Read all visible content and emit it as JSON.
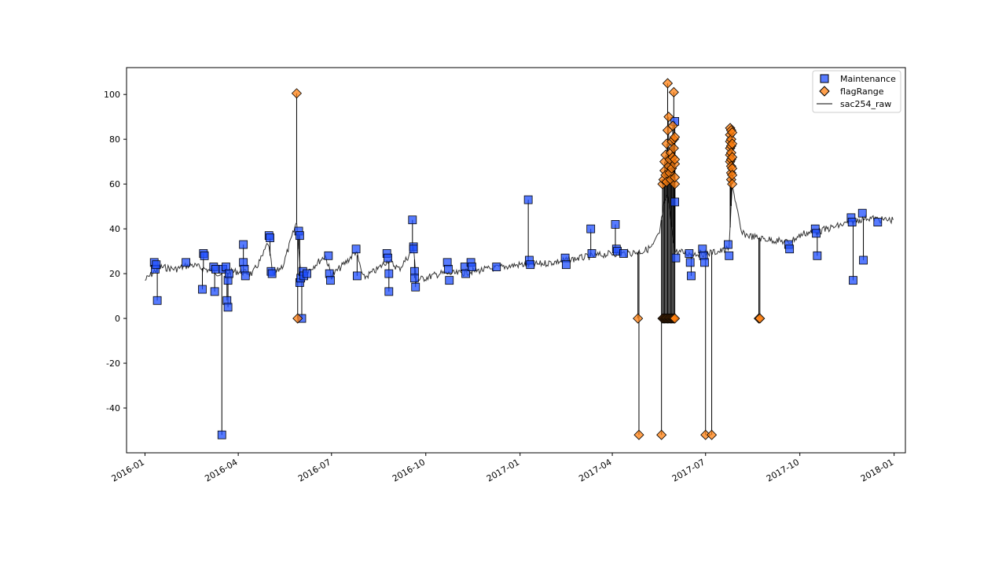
{
  "chart_data": {
    "type": "scatter",
    "title": "",
    "xlabel": "",
    "ylabel": "",
    "xlim": [
      "2015-12-14",
      "2018-01-12"
    ],
    "ylim": [
      -60,
      112
    ],
    "grid": false,
    "legend_position": "upper right",
    "x_tick_labels": [
      "2016-01",
      "2016-04",
      "2016-07",
      "2016-10",
      "2017-01",
      "2017-04",
      "2017-07",
      "2017-10",
      "2018-01"
    ],
    "y_tick_labels": [
      "-40",
      "-20",
      "0",
      "20",
      "40",
      "60",
      "80",
      "100"
    ],
    "y_ticks": [
      -40,
      -20,
      0,
      20,
      40,
      60,
      80,
      100
    ],
    "series": [
      {
        "name": "Maintenance",
        "marker": "square",
        "color": "#1f4fff",
        "points": [
          [
            "2016-01-10",
            25
          ],
          [
            "2016-01-11",
            22
          ],
          [
            "2016-01-12",
            24
          ],
          [
            "2016-01-13",
            8
          ],
          [
            "2016-02-10",
            25
          ],
          [
            "2016-02-26",
            13
          ],
          [
            "2016-02-27",
            29
          ],
          [
            "2016-02-28",
            28
          ],
          [
            "2016-03-08",
            23
          ],
          [
            "2016-03-09",
            12
          ],
          [
            "2016-03-10",
            22
          ],
          [
            "2016-03-16",
            -52
          ],
          [
            "2016-03-17",
            22
          ],
          [
            "2016-03-20",
            23
          ],
          [
            "2016-03-21",
            8
          ],
          [
            "2016-03-22",
            5
          ],
          [
            "2016-03-22",
            17
          ],
          [
            "2016-03-23",
            20
          ],
          [
            "2016-04-06",
            33
          ],
          [
            "2016-04-06",
            25
          ],
          [
            "2016-04-07",
            22
          ],
          [
            "2016-04-08",
            19
          ],
          [
            "2016-05-01",
            37
          ],
          [
            "2016-05-02",
            36
          ],
          [
            "2016-05-03",
            21
          ],
          [
            "2016-05-04",
            20
          ],
          [
            "2016-05-30",
            39
          ],
          [
            "2016-05-31",
            37
          ],
          [
            "2016-05-31",
            16
          ],
          [
            "2016-06-01",
            18
          ],
          [
            "2016-06-02",
            0
          ],
          [
            "2016-06-03",
            21
          ],
          [
            "2016-06-04",
            19
          ],
          [
            "2016-06-07",
            20
          ],
          [
            "2016-06-28",
            28
          ],
          [
            "2016-06-29",
            20
          ],
          [
            "2016-06-30",
            17
          ],
          [
            "2016-07-25",
            31
          ],
          [
            "2016-07-26",
            19
          ],
          [
            "2016-08-24",
            29
          ],
          [
            "2016-08-25",
            27
          ],
          [
            "2016-08-26",
            12
          ],
          [
            "2016-08-26",
            20
          ],
          [
            "2016-09-18",
            44
          ],
          [
            "2016-09-19",
            32
          ],
          [
            "2016-09-19",
            31
          ],
          [
            "2016-09-20",
            21
          ],
          [
            "2016-09-20",
            18
          ],
          [
            "2016-09-21",
            14
          ],
          [
            "2016-10-22",
            25
          ],
          [
            "2016-10-23",
            22
          ],
          [
            "2016-10-24",
            17
          ],
          [
            "2016-11-08",
            23
          ],
          [
            "2016-11-09",
            20
          ],
          [
            "2016-11-14",
            25
          ],
          [
            "2016-11-15",
            23
          ],
          [
            "2016-12-09",
            23
          ],
          [
            "2017-01-09",
            53
          ],
          [
            "2017-01-10",
            26
          ],
          [
            "2017-01-11",
            24
          ],
          [
            "2017-02-14",
            27
          ],
          [
            "2017-02-15",
            24
          ],
          [
            "2017-03-11",
            40
          ],
          [
            "2017-03-12",
            29
          ],
          [
            "2017-04-04",
            42
          ],
          [
            "2017-04-05",
            31
          ],
          [
            "2017-04-06",
            30
          ],
          [
            "2017-04-12",
            29
          ],
          [
            "2017-06-01",
            88
          ],
          [
            "2017-06-01",
            52
          ],
          [
            "2017-06-02",
            27
          ],
          [
            "2017-06-15",
            29
          ],
          [
            "2017-06-16",
            25
          ],
          [
            "2017-06-17",
            19
          ],
          [
            "2017-06-28",
            31
          ],
          [
            "2017-06-29",
            28
          ],
          [
            "2017-06-30",
            25
          ],
          [
            "2017-07-23",
            33
          ],
          [
            "2017-07-24",
            28
          ],
          [
            "2017-09-20",
            33
          ],
          [
            "2017-09-21",
            31
          ],
          [
            "2017-10-16",
            40
          ],
          [
            "2017-10-17",
            38
          ],
          [
            "2017-10-18",
            28
          ],
          [
            "2017-11-20",
            45
          ],
          [
            "2017-11-21",
            43
          ],
          [
            "2017-11-22",
            17
          ],
          [
            "2017-12-01",
            47
          ],
          [
            "2017-12-02",
            26
          ],
          [
            "2017-12-16",
            43
          ]
        ]
      },
      {
        "name": "flagRange",
        "marker": "diamond",
        "color": "#ff8010",
        "points": [
          [
            "2016-05-28",
            100.5
          ],
          [
            "2016-05-29",
            0
          ],
          [
            "2017-04-26",
            0
          ],
          [
            "2017-04-27",
            -52
          ],
          [
            "2017-05-19",
            -52
          ],
          [
            "2017-05-20",
            0
          ],
          [
            "2017-05-21",
            0
          ],
          [
            "2017-05-22",
            0
          ],
          [
            "2017-05-23",
            0
          ],
          [
            "2017-05-24",
            0
          ],
          [
            "2017-05-25",
            0
          ],
          [
            "2017-05-26",
            0
          ],
          [
            "2017-05-27",
            0
          ],
          [
            "2017-05-28",
            0
          ],
          [
            "2017-05-29",
            0
          ],
          [
            "2017-05-30",
            0
          ],
          [
            "2017-05-31",
            0
          ],
          [
            "2017-06-01",
            0
          ],
          [
            "2017-05-20",
            60
          ],
          [
            "2017-05-21",
            62
          ],
          [
            "2017-05-22",
            66
          ],
          [
            "2017-05-22",
            70
          ],
          [
            "2017-05-23",
            64
          ],
          [
            "2017-05-23",
            73
          ],
          [
            "2017-05-24",
            61
          ],
          [
            "2017-05-24",
            78
          ],
          [
            "2017-05-25",
            84
          ],
          [
            "2017-05-25",
            105
          ],
          [
            "2017-05-26",
            68
          ],
          [
            "2017-05-26",
            90
          ],
          [
            "2017-05-27",
            71
          ],
          [
            "2017-05-27",
            65
          ],
          [
            "2017-05-28",
            74
          ],
          [
            "2017-05-28",
            62
          ],
          [
            "2017-05-29",
            79
          ],
          [
            "2017-05-29",
            67
          ],
          [
            "2017-05-30",
            86
          ],
          [
            "2017-05-30",
            72
          ],
          [
            "2017-05-31",
            101
          ],
          [
            "2017-05-31",
            80
          ],
          [
            "2017-05-31",
            76
          ],
          [
            "2017-06-01",
            60
          ],
          [
            "2017-06-01",
            63
          ],
          [
            "2017-06-01",
            69
          ],
          [
            "2017-06-01",
            71
          ],
          [
            "2017-06-01",
            81
          ],
          [
            "2017-07-01",
            -52
          ],
          [
            "2017-07-07",
            -52
          ],
          [
            "2017-07-25",
            85
          ],
          [
            "2017-07-25",
            82
          ],
          [
            "2017-07-25",
            79
          ],
          [
            "2017-07-25",
            76
          ],
          [
            "2017-07-25",
            73
          ],
          [
            "2017-07-25",
            70
          ],
          [
            "2017-07-26",
            84
          ],
          [
            "2017-07-26",
            80
          ],
          [
            "2017-07-26",
            77
          ],
          [
            "2017-07-26",
            74
          ],
          [
            "2017-07-26",
            71
          ],
          [
            "2017-07-26",
            68
          ],
          [
            "2017-07-26",
            65
          ],
          [
            "2017-07-26",
            62
          ],
          [
            "2017-07-27",
            83
          ],
          [
            "2017-07-27",
            78
          ],
          [
            "2017-07-27",
            72
          ],
          [
            "2017-07-27",
            67
          ],
          [
            "2017-07-27",
            64
          ],
          [
            "2017-07-27",
            60
          ],
          [
            "2017-08-22",
            0
          ],
          [
            "2017-08-23",
            0
          ]
        ]
      },
      {
        "name": "sac254_raw",
        "marker": "line",
        "color": "#000000",
        "points": [
          [
            "2016-01-01",
            17
          ],
          [
            "2016-01-15",
            23
          ],
          [
            "2016-01-31",
            22
          ],
          [
            "2016-02-15",
            24
          ],
          [
            "2016-02-29",
            22
          ],
          [
            "2016-03-15",
            20
          ],
          [
            "2016-03-31",
            21
          ],
          [
            "2016-04-15",
            20
          ],
          [
            "2016-04-25",
            28
          ],
          [
            "2016-04-30",
            34
          ],
          [
            "2016-05-05",
            19
          ],
          [
            "2016-05-15",
            24
          ],
          [
            "2016-05-28",
            43
          ],
          [
            "2016-06-01",
            19
          ],
          [
            "2016-06-10",
            22
          ],
          [
            "2016-06-25",
            28
          ],
          [
            "2016-07-01",
            19
          ],
          [
            "2016-07-15",
            25
          ],
          [
            "2016-07-25",
            30
          ],
          [
            "2016-08-01",
            18
          ],
          [
            "2016-08-15",
            22
          ],
          [
            "2016-08-25",
            26
          ],
          [
            "2016-09-05",
            22
          ],
          [
            "2016-09-19",
            31
          ],
          [
            "2016-09-22",
            17
          ],
          [
            "2016-10-15",
            20
          ],
          [
            "2016-11-01",
            20
          ],
          [
            "2016-11-15",
            21
          ],
          [
            "2016-12-01",
            22
          ],
          [
            "2016-12-15",
            23
          ],
          [
            "2017-01-01",
            24
          ],
          [
            "2017-01-15",
            24
          ],
          [
            "2017-02-01",
            25
          ],
          [
            "2017-02-15",
            26
          ],
          [
            "2017-03-01",
            27
          ],
          [
            "2017-03-15",
            28
          ],
          [
            "2017-04-01",
            29
          ],
          [
            "2017-04-15",
            29
          ],
          [
            "2017-05-01",
            30
          ],
          [
            "2017-05-10",
            32
          ],
          [
            "2017-05-17",
            38
          ],
          [
            "2017-05-21",
            50
          ],
          [
            "2017-05-25",
            55
          ],
          [
            "2017-06-01",
            30
          ],
          [
            "2017-06-15",
            29
          ],
          [
            "2017-07-01",
            29
          ],
          [
            "2017-07-15",
            30
          ],
          [
            "2017-07-24",
            31
          ],
          [
            "2017-07-27",
            60
          ],
          [
            "2017-08-05",
            38
          ],
          [
            "2017-08-20",
            36
          ],
          [
            "2017-09-05",
            35
          ],
          [
            "2017-09-20",
            34
          ],
          [
            "2017-10-05",
            38
          ],
          [
            "2017-10-20",
            39
          ],
          [
            "2017-11-05",
            41
          ],
          [
            "2017-11-20",
            43
          ],
          [
            "2017-12-05",
            45
          ],
          [
            "2017-12-20",
            44
          ],
          [
            "2017-12-31",
            44
          ]
        ]
      }
    ]
  }
}
